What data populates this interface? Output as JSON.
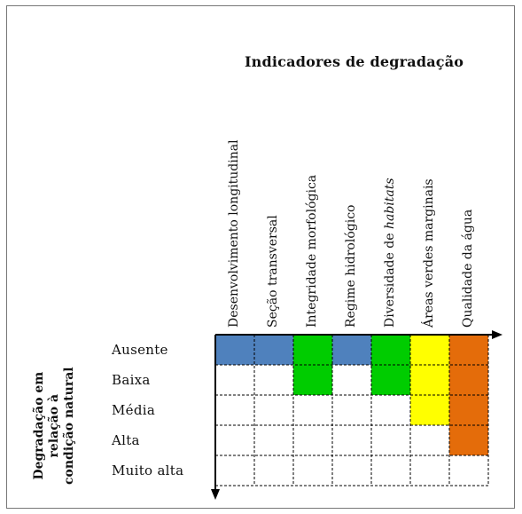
{
  "title": "Indicadores de degradação",
  "row_axis_title": [
    "Degradação em",
    "relação à",
    "condição natural"
  ],
  "columns": [
    {
      "label": "Desenvolvimento longitudinal"
    },
    {
      "label": "Seção transversal"
    },
    {
      "label": "Integridade morfológica"
    },
    {
      "label": "Regime hidrológico"
    },
    {
      "label_prefix": "Diversidade de ",
      "label_italic": "habitats"
    },
    {
      "label": "Áreas verdes marginais"
    },
    {
      "label": "Qualidade da água"
    }
  ],
  "rows": [
    "Ausente",
    "Baixa",
    "Média",
    "Alta",
    "Muito alta"
  ],
  "colors": {
    "blue": "#4f81bd",
    "green": "#00cc00",
    "yellow": "#ffff00",
    "orange": "#e46c0a",
    "empty": "#ffffff"
  },
  "matrix": [
    [
      "blue",
      "blue",
      "green",
      "blue",
      "green",
      "yellow",
      "orange"
    ],
    [
      "empty",
      "empty",
      "green",
      "empty",
      "green",
      "yellow",
      "orange"
    ],
    [
      "empty",
      "empty",
      "empty",
      "empty",
      "empty",
      "yellow",
      "orange"
    ],
    [
      "empty",
      "empty",
      "empty",
      "empty",
      "empty",
      "empty",
      "orange"
    ],
    [
      "empty",
      "empty",
      "empty",
      "empty",
      "empty",
      "empty",
      "empty"
    ]
  ]
}
